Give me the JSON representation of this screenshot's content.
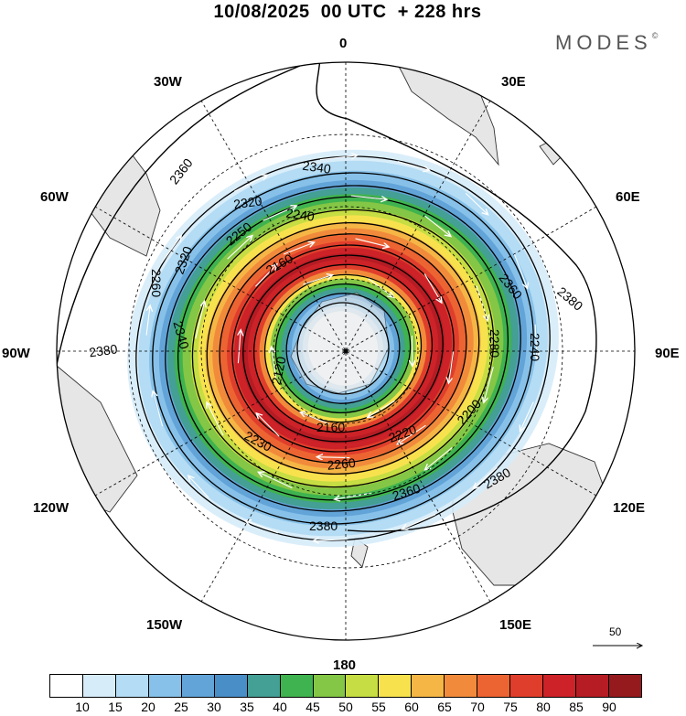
{
  "title": "10/08/2025  00 UTC  + 228 hrs",
  "brand": "MODES",
  "brand_mark": "©",
  "longitude_labels": {
    "n": "0",
    "ne30": "30E",
    "e60": "60E",
    "e90": "90E",
    "e120": "120E",
    "e150": "150E",
    "s": "180",
    "w150": "150W",
    "w120": "120W",
    "w90": "90W",
    "w60": "60W",
    "w30": "30W"
  },
  "contour_labels": [
    "2360",
    "2320",
    "2340",
    "2240",
    "2250",
    "2160",
    "2320",
    "2260",
    "2340",
    "2380",
    "2380",
    "2360",
    "2280",
    "2240",
    "2120",
    "2160",
    "2220",
    "2200",
    "2260",
    "2230",
    "2360",
    "2380",
    "2380"
  ],
  "colorbar": {
    "colors": [
      "#ffffff",
      "#d6ecf9",
      "#b4dcf4",
      "#87c1e9",
      "#62a4d8",
      "#4a8ec8",
      "#449f94",
      "#3fb34f",
      "#84c645",
      "#c6dd43",
      "#f7e24e",
      "#f5b645",
      "#f18b3b",
      "#ec6432",
      "#e03e2c",
      "#cc2228",
      "#b51c24",
      "#951a1e"
    ],
    "labels": [
      "10",
      "15",
      "20",
      "25",
      "30",
      "35",
      "40",
      "45",
      "50",
      "55",
      "60",
      "65",
      "70",
      "75",
      "80",
      "85",
      "90"
    ]
  },
  "vector_reference": "50",
  "colors": {
    "land": "#e6e6e6",
    "coast": "#333333",
    "contour": "#000000",
    "grid": "#000000"
  }
}
